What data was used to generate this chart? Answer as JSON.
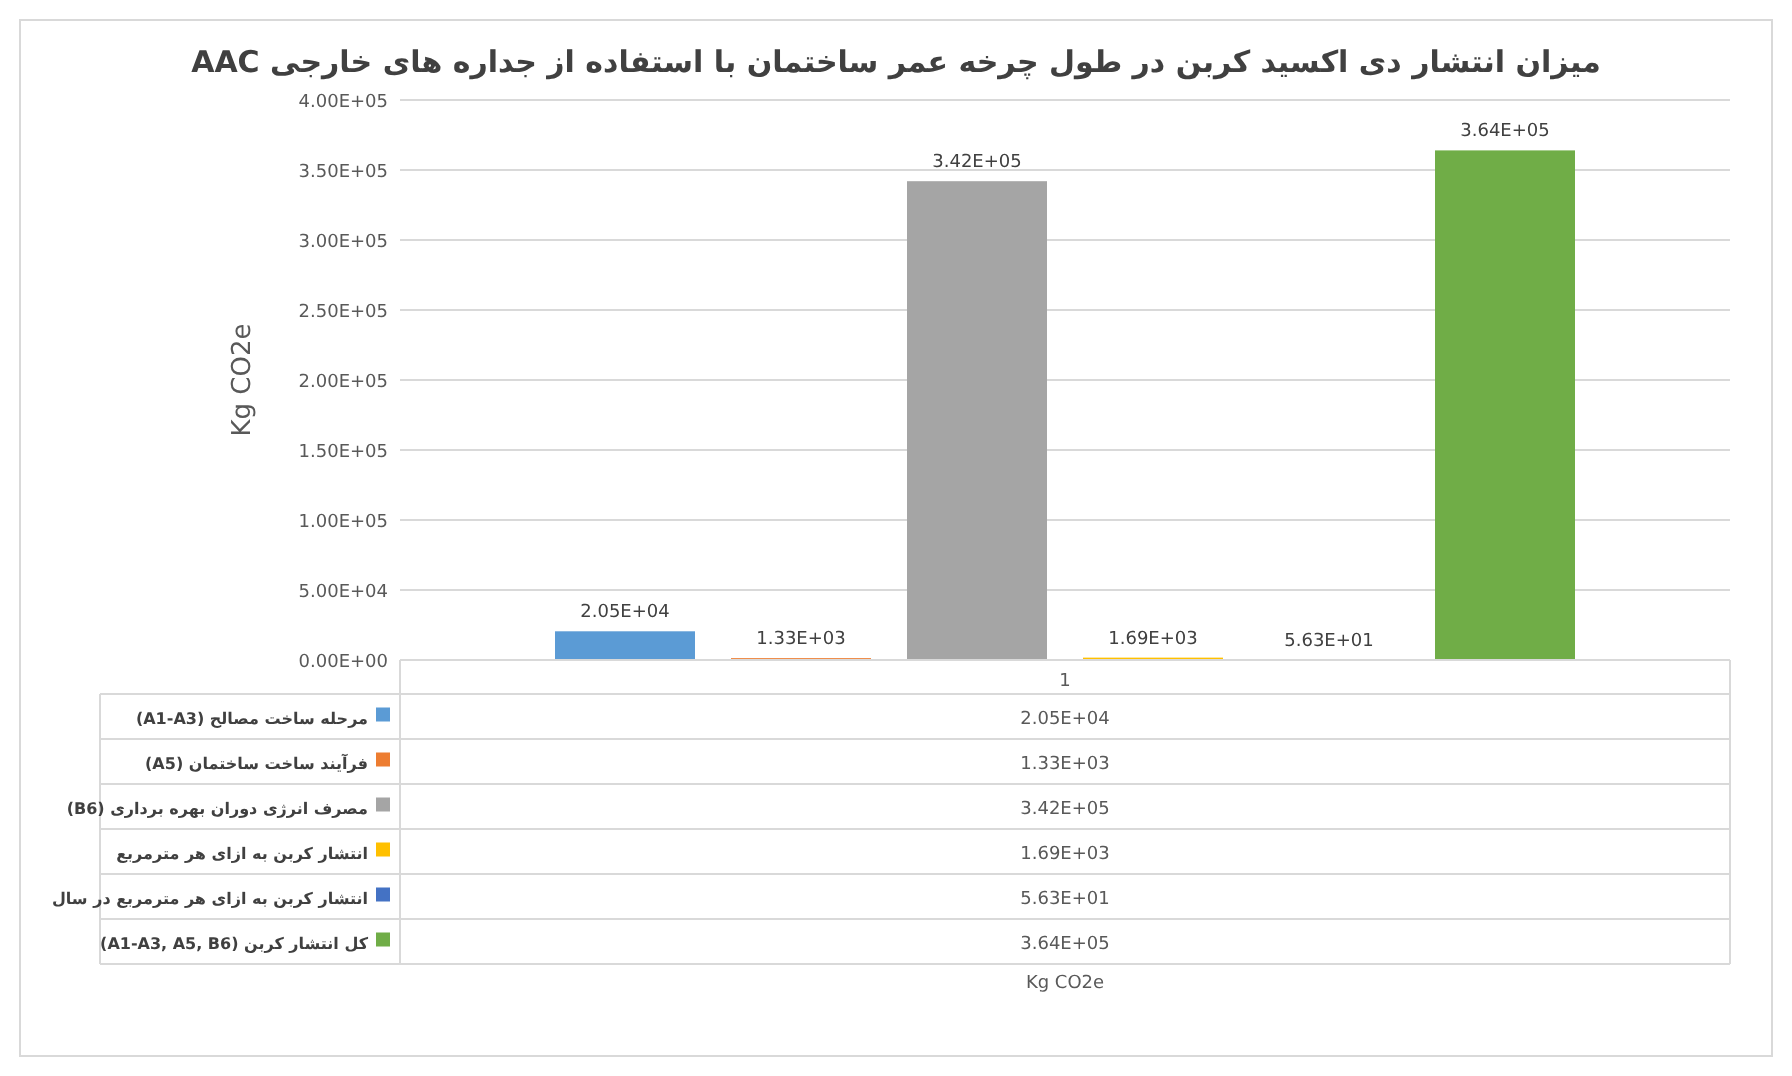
{
  "chart_data": {
    "type": "bar",
    "title": "میزان انتشار دی اکسید کربن در طول چرخه عمر ساختمان با استفاده از جداره های خارجی AAC",
    "annotations": [
      "Kg CO2e"
    ],
    "ylabel": "Kg CO2e",
    "categories": [
      "1"
    ],
    "series": [
      {
        "name": "مرحله ساخت مصالح (A1-A3)",
        "color": "#5b9bd5",
        "values": [
          20500
        ],
        "value_labels": [
          "2.05E+04"
        ]
      },
      {
        "name": "فرآیند ساخت ساختمان (A5)",
        "color": "#ed7d31",
        "values": [
          1330
        ],
        "value_labels": [
          "1.33E+03"
        ]
      },
      {
        "name": "مصرف انرژی دوران بهره برداری (B6)",
        "color": "#a5a5a5",
        "values": [
          342000
        ],
        "value_labels": [
          "3.42E+05"
        ]
      },
      {
        "name": "انتشار کربن به ازای هر مترمربع",
        "color": "#ffc000",
        "values": [
          1690
        ],
        "value_labels": [
          "1.69E+03"
        ]
      },
      {
        "name": "انتشار کربن به ازای هر مترمربع در سال",
        "color": "#4472c4",
        "values": [
          56.3
        ],
        "value_labels": [
          "5.63E+01"
        ]
      },
      {
        "name": "کل انتشار کربن (A1-A3, A5, B6)",
        "color": "#70ad47",
        "values": [
          364000
        ],
        "value_labels": [
          "3.64E+05"
        ]
      }
    ],
    "ylim": [
      0,
      400000
    ],
    "yticks": [
      {
        "value": 0,
        "label": "0.00E+00"
      },
      {
        "value": 50000,
        "label": "5.00E+04"
      },
      {
        "value": 100000,
        "label": "1.00E+05"
      },
      {
        "value": 150000,
        "label": "1.50E+05"
      },
      {
        "value": 200000,
        "label": "2.00E+05"
      },
      {
        "value": 250000,
        "label": "2.50E+05"
      },
      {
        "value": 300000,
        "label": "3.00E+05"
      },
      {
        "value": 350000,
        "label": "3.50E+05"
      },
      {
        "value": 400000,
        "label": "4.00E+05"
      }
    ],
    "grid": "y",
    "legend": "bottom left"
  }
}
